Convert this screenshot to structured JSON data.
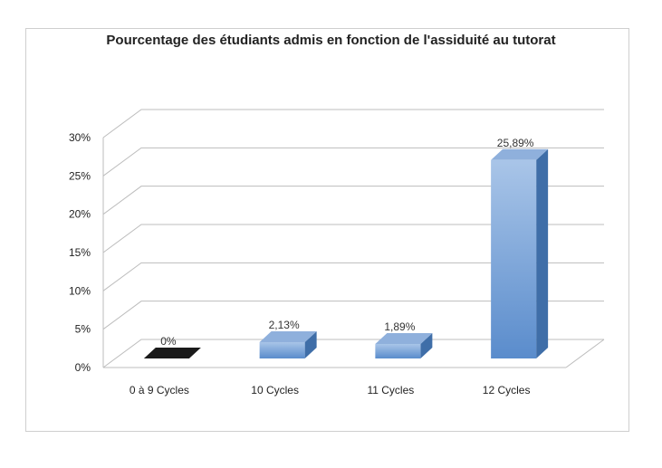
{
  "chart_data": {
    "type": "bar",
    "title": "Pourcentage des étudiants admis en fonction de l'assiduité au tutorat",
    "xlabel": "",
    "ylabel": "",
    "categories": [
      "0 à 9 Cycles",
      "10 Cycles",
      "11 Cycles",
      "12 Cycles"
    ],
    "values": [
      0,
      2.13,
      1.89,
      25.89
    ],
    "data_labels": [
      "0%",
      "2,13%",
      "1,89%",
      "25,89%"
    ],
    "ylim": [
      0,
      30
    ],
    "yticks": [
      "0%",
      "5%",
      "10%",
      "15%",
      "20%",
      "25%",
      "30%"
    ],
    "grid": true,
    "legend": "none",
    "style": "3d-column",
    "colors": {
      "bar_front_top": "#a9c5e8",
      "bar_front_bottom": "#5a8ccc",
      "bar_top": "#8fb0dc",
      "bar_side": "#3f6ea8",
      "zero_bar": "#1a1a1a",
      "grid": "#bdbdbd"
    }
  }
}
